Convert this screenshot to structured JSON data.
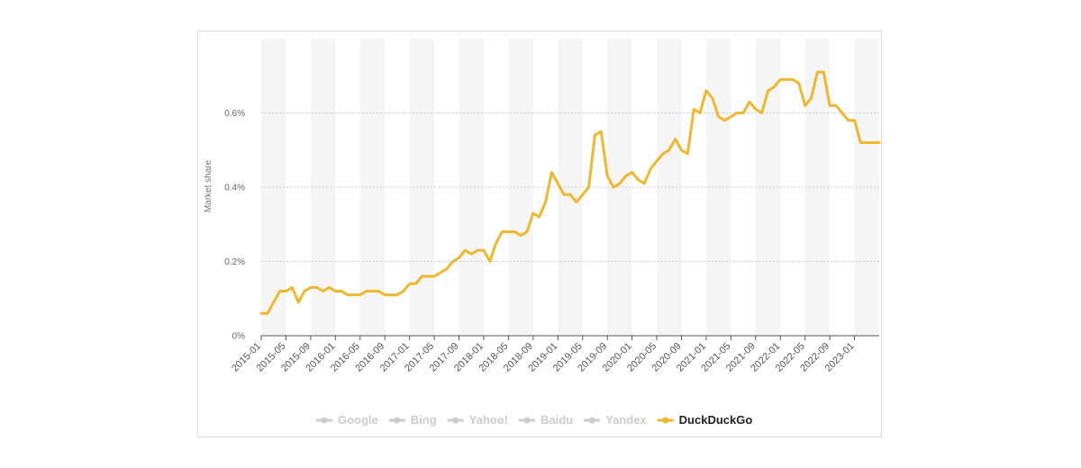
{
  "chart_data": {
    "type": "line",
    "ylabel": "Market share",
    "xlabel": "",
    "ylim": [
      0,
      0.8
    ],
    "y_ticks": [
      0,
      0.2,
      0.4,
      0.6
    ],
    "y_tick_labels": [
      "0%",
      "0.2%",
      "0.4%",
      "0.6%"
    ],
    "x_tick_labels": [
      "2015-01",
      "2015-05",
      "2015-09",
      "2016-01",
      "2016-05",
      "2016-09",
      "2017-01",
      "2017-05",
      "2017-09",
      "2018-01",
      "2018-05",
      "2018-09",
      "2019-01",
      "2019-05",
      "2019-09",
      "2020-01",
      "2020-05",
      "2020-09",
      "2021-01",
      "2021-05",
      "2021-09",
      "2022-01",
      "2022-05",
      "2022-09",
      "2023-01"
    ],
    "start_month": "2015-01",
    "grid": true,
    "legend_position": "bottom",
    "legend": [
      {
        "name": "Google",
        "active": false
      },
      {
        "name": "Bing",
        "active": false
      },
      {
        "name": "Yahoo!",
        "active": false
      },
      {
        "name": "Baidu",
        "active": false
      },
      {
        "name": "Yandex",
        "active": false
      },
      {
        "name": "DuckDuckGo",
        "active": true
      }
    ],
    "series": [
      {
        "name": "DuckDuckGo",
        "color": "#f0b72f",
        "values": [
          0.06,
          0.06,
          0.09,
          0.12,
          0.12,
          0.13,
          0.09,
          0.12,
          0.13,
          0.13,
          0.12,
          0.13,
          0.12,
          0.12,
          0.11,
          0.11,
          0.11,
          0.12,
          0.12,
          0.12,
          0.11,
          0.11,
          0.11,
          0.12,
          0.14,
          0.14,
          0.16,
          0.16,
          0.16,
          0.17,
          0.18,
          0.2,
          0.21,
          0.23,
          0.22,
          0.23,
          0.23,
          0.2,
          0.25,
          0.28,
          0.28,
          0.28,
          0.27,
          0.28,
          0.33,
          0.32,
          0.36,
          0.44,
          0.41,
          0.38,
          0.38,
          0.36,
          0.38,
          0.4,
          0.54,
          0.55,
          0.43,
          0.4,
          0.41,
          0.43,
          0.44,
          0.42,
          0.41,
          0.45,
          0.47,
          0.49,
          0.5,
          0.53,
          0.5,
          0.49,
          0.61,
          0.6,
          0.66,
          0.64,
          0.59,
          0.58,
          0.59,
          0.6,
          0.6,
          0.63,
          0.61,
          0.6,
          0.66,
          0.67,
          0.69,
          0.69,
          0.69,
          0.68,
          0.62,
          0.64,
          0.71,
          0.71,
          0.62,
          0.62,
          0.6,
          0.58,
          0.58,
          0.52,
          0.52,
          0.52,
          0.52
        ]
      }
    ]
  },
  "colors": {
    "accent": "#f0b72f",
    "inactive": "#cccccc",
    "band": "#f5f5f5",
    "grid": "#cfcfcf",
    "axis": "#555555"
  }
}
